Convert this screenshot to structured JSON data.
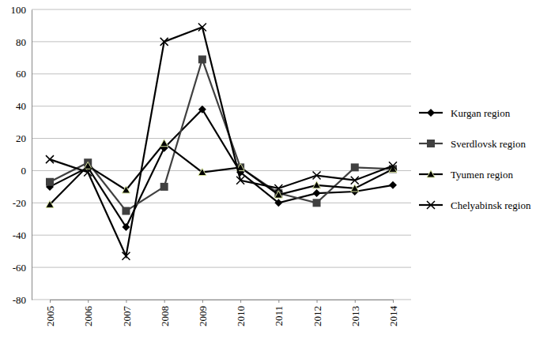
{
  "chart_data": {
    "type": "line",
    "categories": [
      "2005",
      "2006",
      "2007",
      "2008",
      "2009",
      "2010",
      "2011",
      "2012",
      "2013",
      "2014"
    ],
    "series": [
      {
        "name": "Kurgan region",
        "color": "#000000",
        "marker": "diamond",
        "values": [
          -10,
          2,
          -35,
          14,
          38,
          -1,
          -20,
          -14,
          -13,
          -9
        ]
      },
      {
        "name": "Sverdlovsk region",
        "color": "#404040",
        "marker": "square",
        "values": [
          -7,
          5,
          -25,
          -10,
          69,
          2,
          -14,
          -20,
          2,
          1
        ]
      },
      {
        "name": "Tyumen region",
        "color": "#000000",
        "marker": "triangle",
        "values": [
          -21,
          3,
          -12,
          17,
          -1,
          2,
          -15,
          -9,
          -11,
          1
        ]
      },
      {
        "name": "Chelyabinsk region",
        "color": "#000000",
        "marker": "x",
        "values": [
          7,
          -1,
          -53,
          80,
          89,
          -6,
          -11,
          -3,
          -6,
          3
        ]
      }
    ],
    "ylim": [
      -80,
      100
    ],
    "yticks": [
      -80,
      -60,
      -40,
      -20,
      0,
      20,
      40,
      60,
      80,
      100
    ],
    "grid": true,
    "legend": "right"
  }
}
